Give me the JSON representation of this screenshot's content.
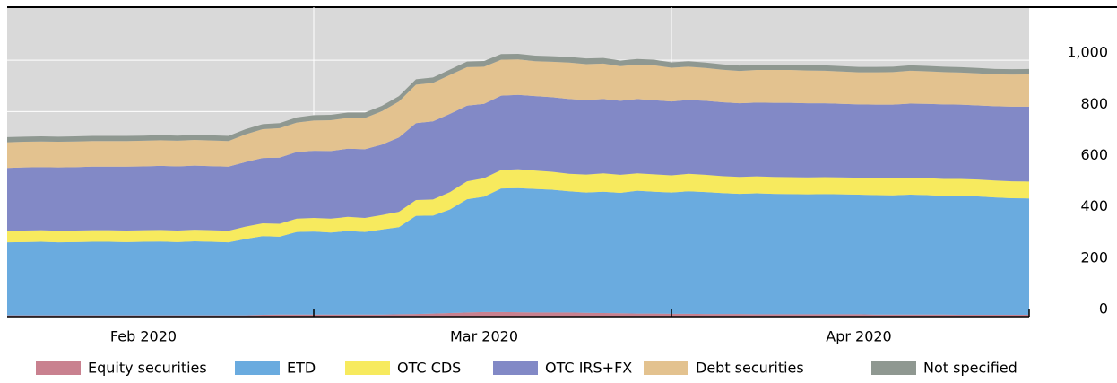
{
  "chart_data": {
    "type": "stacked-area",
    "x": [
      null,
      null,
      null,
      null,
      null,
      null,
      null,
      null,
      "Feb 2020",
      null,
      null,
      null,
      null,
      null,
      null,
      null,
      null,
      null,
      null,
      null,
      null,
      null,
      null,
      null,
      null,
      null,
      null,
      null,
      "Mar 2020",
      null,
      null,
      null,
      null,
      null,
      null,
      null,
      null,
      null,
      null,
      null,
      null,
      null,
      null,
      null,
      null,
      null,
      null,
      null,
      null,
      null,
      "Apr 2020",
      null,
      null,
      null,
      null,
      null,
      null,
      null,
      null,
      null,
      null
    ],
    "series": [
      {
        "name": "Equity securities",
        "color": "#c9818f",
        "values": [
          5,
          5,
          5,
          5,
          5,
          5,
          5,
          5,
          5,
          5,
          5,
          5,
          5,
          5,
          5,
          7,
          8,
          8,
          8,
          8,
          8,
          8,
          8,
          9,
          10,
          12,
          14,
          16,
          18,
          18,
          17,
          16,
          16,
          16,
          15,
          14,
          13,
          12,
          12,
          11,
          11,
          10,
          10,
          10,
          9,
          9,
          9,
          9,
          9,
          9,
          9,
          8,
          8,
          8,
          8,
          8,
          7,
          7,
          7,
          7,
          7
        ]
      },
      {
        "name": "ETD",
        "color": "#6aabdf",
        "values": [
          285,
          286,
          287,
          285,
          286,
          287,
          287,
          286,
          287,
          288,
          286,
          289,
          287,
          285,
          298,
          307,
          304,
          322,
          324,
          320,
          326,
          322,
          332,
          340,
          383,
          382,
          404,
          442,
          450,
          482,
          484,
          482,
          479,
          473,
          469,
          473,
          470,
          479,
          475,
          473,
          478,
          476,
          472,
          469,
          472,
          470,
          469,
          468,
          469,
          468,
          467,
          466,
          465,
          468,
          466,
          463,
          464,
          462,
          458,
          455,
          454
        ]
      },
      {
        "name": "OTC CDS",
        "color": "#f7ea5e",
        "values": [
          45,
          45,
          45,
          45,
          45,
          45,
          45,
          45,
          45,
          45,
          45,
          45,
          45,
          45,
          48,
          50,
          50,
          52,
          53,
          54,
          55,
          55,
          56,
          60,
          62,
          63,
          68,
          70,
          72,
          72,
          74,
          72,
          70,
          68,
          70,
          72,
          70,
          68,
          68,
          67,
          68,
          67,
          66,
          66,
          66,
          66,
          66,
          66,
          66,
          66,
          66,
          66,
          66,
          66,
          66,
          66,
          66,
          66,
          66,
          66,
          66
        ]
      },
      {
        "name": "OTC IRS+FX",
        "color": "#8289c6",
        "values": [
          245,
          246,
          246,
          247,
          247,
          248,
          248,
          249,
          249,
          250,
          250,
          250,
          250,
          250,
          252,
          255,
          258,
          260,
          262,
          264,
          266,
          268,
          275,
          290,
          300,
          305,
          305,
          295,
          290,
          290,
          290,
          290,
          291,
          292,
          291,
          290,
          289,
          290,
          289,
          288,
          288,
          289,
          288,
          287,
          288,
          289,
          290,
          289,
          288,
          287,
          286,
          287,
          288,
          289,
          290,
          291,
          290,
          289,
          290,
          291,
          292
        ]
      },
      {
        "name": "Debt securities",
        "color": "#e3c28f",
        "values": [
          100,
          100,
          100,
          100,
          100,
          100,
          100,
          100,
          100,
          100,
          100,
          100,
          100,
          100,
          108,
          112,
          115,
          115,
          118,
          120,
          120,
          122,
          130,
          140,
          150,
          150,
          152,
          150,
          145,
          140,
          138,
          136,
          138,
          142,
          140,
          138,
          135,
          134,
          136,
          132,
          130,
          128,
          127,
          126,
          127,
          128,
          128,
          128,
          127,
          126,
          125,
          126,
          127,
          128,
          127,
          126,
          125,
          125,
          124,
          125,
          126
        ]
      },
      {
        "name": "Not specified",
        "color": "#8f9891",
        "values": [
          20,
          20,
          20,
          20,
          20,
          20,
          20,
          20,
          20,
          20,
          20,
          20,
          20,
          20,
          20,
          20,
          20,
          20,
          21,
          21,
          21,
          21,
          21,
          21,
          21,
          21,
          21,
          22,
          22,
          22,
          22,
          22,
          22,
          22,
          22,
          22,
          22,
          22,
          22,
          21,
          21,
          21,
          21,
          21,
          21,
          21,
          21,
          21,
          21,
          21,
          21,
          21,
          21,
          21,
          21,
          21,
          21,
          21,
          21,
          21,
          21
        ]
      }
    ],
    "ylim": [
      0,
      1200
    ],
    "yticks": [
      0,
      200,
      400,
      600,
      800,
      {
        "value": 1000,
        "label": "1,000"
      }
    ],
    "grid": true
  }
}
